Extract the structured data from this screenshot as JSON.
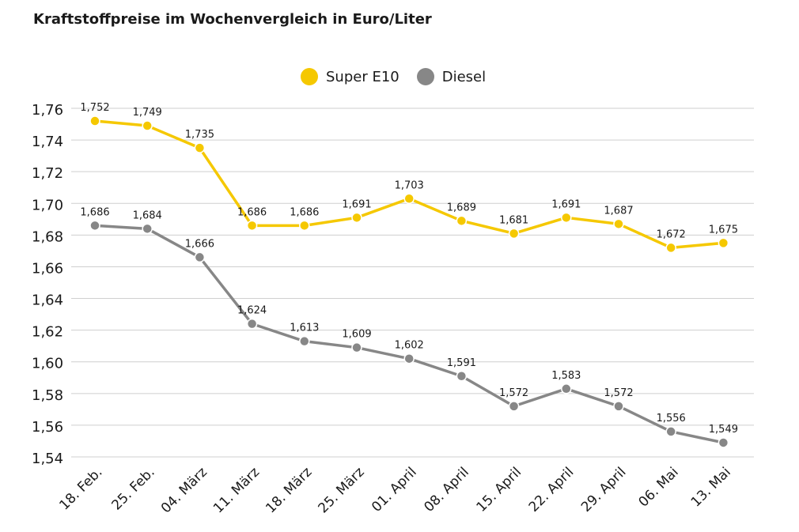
{
  "chart_data": {
    "type": "line",
    "title": "Kraftstoffpreise im Wochenvergleich in Euro/Liter",
    "xlabel": "",
    "ylabel": "",
    "categories": [
      "18. Feb.",
      "25. Feb.",
      "04. März",
      "11. März",
      "18. März",
      "25. März",
      "01. April",
      "08. April",
      "15. April",
      "22. April",
      "29. April",
      "06. Mai",
      "13. Mai"
    ],
    "ylim": [
      1.54,
      1.76
    ],
    "yticks": [
      "1,54",
      "1,56",
      "1,58",
      "1,60",
      "1,62",
      "1,64",
      "1,66",
      "1,68",
      "1,70",
      "1,72",
      "1,74",
      "1,76"
    ],
    "grid": true,
    "legend_position": "top",
    "series": [
      {
        "name": "Super E10",
        "color": "#f5c800",
        "values": [
          1.752,
          1.749,
          1.735,
          1.686,
          1.686,
          1.691,
          1.703,
          1.689,
          1.681,
          1.691,
          1.687,
          1.672,
          1.675
        ],
        "labels": [
          "1,752",
          "1,749",
          "1,735",
          "1,686",
          "1,686",
          "1,691",
          "1,703",
          "1,689",
          "1,681",
          "1,691",
          "1,687",
          "1,672",
          "1,675"
        ]
      },
      {
        "name": "Diesel",
        "color": "#878787",
        "values": [
          1.686,
          1.684,
          1.666,
          1.624,
          1.613,
          1.609,
          1.602,
          1.591,
          1.572,
          1.583,
          1.572,
          1.556,
          1.549
        ],
        "labels": [
          "1,686",
          "1,684",
          "1,666",
          "1,624",
          "1,613",
          "1,609",
          "1,602",
          "1,591",
          "1,572",
          "1,583",
          "1,572",
          "1,556",
          "1,549"
        ]
      }
    ]
  }
}
